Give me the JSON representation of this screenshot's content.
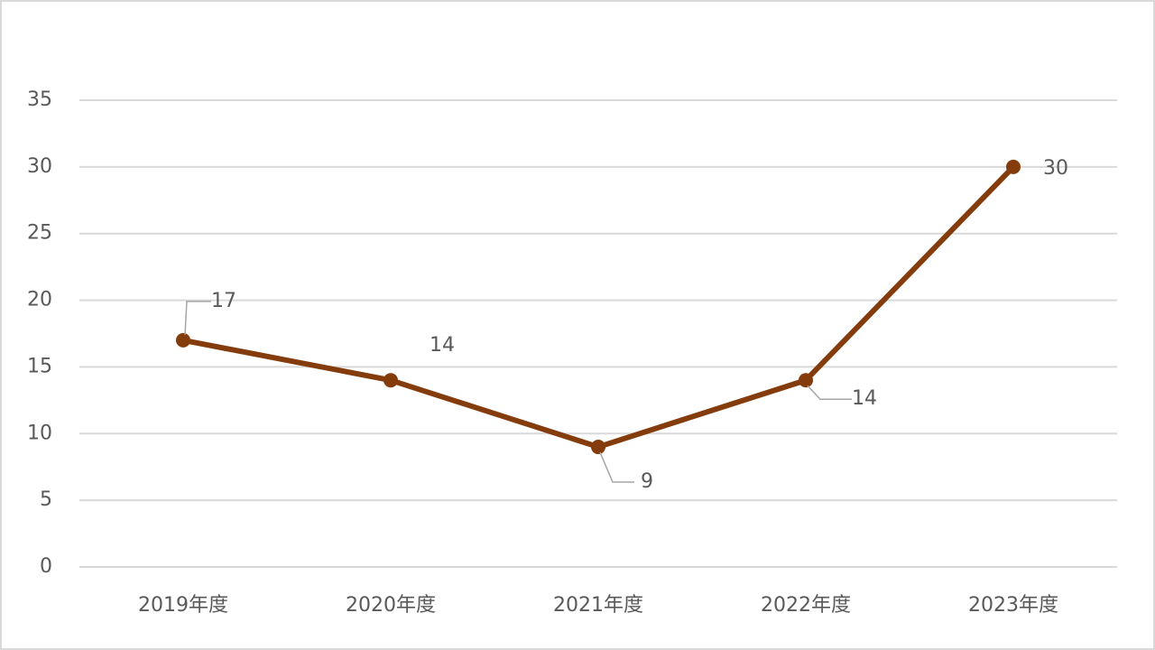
{
  "chart_data": {
    "type": "line",
    "categories": [
      "2019年度",
      "2020年度",
      "2021年度",
      "2022年度",
      "2023年度"
    ],
    "series": [
      {
        "name": "Series1",
        "color": "#843c0c",
        "values": [
          17,
          14,
          9,
          14,
          30
        ]
      }
    ],
    "ylim": [
      0,
      35
    ],
    "yticks": [
      0,
      5,
      10,
      15,
      20,
      25,
      30,
      35
    ],
    "grid": true,
    "data_labels": true
  }
}
